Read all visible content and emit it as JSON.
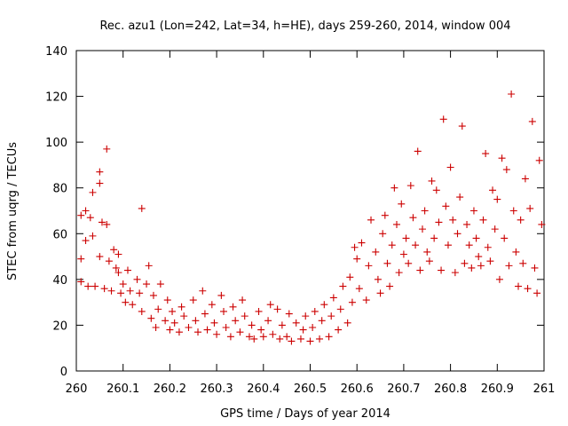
{
  "chart_data": {
    "type": "scatter",
    "title": "Rec. azu1 (Lon=242, Lat=34, h=HE), days 259-260, 2014, window 004",
    "xlabel": "GPS time / Days of year 2014",
    "ylabel": "STEC from uqrg / TECUs",
    "xlim": [
      260,
      261
    ],
    "ylim": [
      0,
      140
    ],
    "grid": false,
    "marker": "+",
    "color": "#cc0000",
    "x_ticks": [
      260,
      260.1,
      260.2,
      260.3,
      260.4,
      260.5,
      260.6,
      260.7,
      260.8,
      260.9,
      261
    ],
    "x_tick_labels": [
      "260",
      "260.1",
      "260.2",
      "260.3",
      "260.4",
      "260.5",
      "260.6",
      "260.7",
      "260.8",
      "260.9",
      "261"
    ],
    "y_ticks": [
      0,
      20,
      40,
      60,
      80,
      100,
      120,
      140
    ],
    "y_tick_labels": [
      "0",
      "20",
      "40",
      "60",
      "80",
      "100",
      "120",
      "140"
    ],
    "series": [
      {
        "name": "STEC",
        "points": [
          [
            260.01,
            68
          ],
          [
            260.01,
            49
          ],
          [
            260.01,
            39
          ],
          [
            260.02,
            70
          ],
          [
            260.02,
            57
          ],
          [
            260.025,
            37
          ],
          [
            260.03,
            67
          ],
          [
            260.035,
            59
          ],
          [
            260.035,
            78
          ],
          [
            260.04,
            37
          ],
          [
            260.05,
            82
          ],
          [
            260.05,
            87
          ],
          [
            260.05,
            50
          ],
          [
            260.055,
            65
          ],
          [
            260.06,
            36
          ],
          [
            260.065,
            97
          ],
          [
            260.065,
            64
          ],
          [
            260.07,
            48
          ],
          [
            260.075,
            35
          ],
          [
            260.08,
            53
          ],
          [
            260.085,
            45
          ],
          [
            260.09,
            43
          ],
          [
            260.09,
            51
          ],
          [
            260.095,
            34
          ],
          [
            260.1,
            38
          ],
          [
            260.105,
            30
          ],
          [
            260.11,
            44
          ],
          [
            260.115,
            35
          ],
          [
            260.12,
            29
          ],
          [
            260.13,
            40
          ],
          [
            260.135,
            34
          ],
          [
            260.14,
            26
          ],
          [
            260.14,
            71
          ],
          [
            260.15,
            38
          ],
          [
            260.155,
            46
          ],
          [
            260.16,
            23
          ],
          [
            260.165,
            33
          ],
          [
            260.17,
            19
          ],
          [
            260.175,
            27
          ],
          [
            260.18,
            38
          ],
          [
            260.19,
            22
          ],
          [
            260.195,
            31
          ],
          [
            260.2,
            18
          ],
          [
            260.205,
            26
          ],
          [
            260.21,
            21
          ],
          [
            260.22,
            17
          ],
          [
            260.225,
            28
          ],
          [
            260.23,
            24
          ],
          [
            260.24,
            19
          ],
          [
            260.25,
            31
          ],
          [
            260.255,
            22
          ],
          [
            260.26,
            17
          ],
          [
            260.27,
            35
          ],
          [
            260.275,
            25
          ],
          [
            260.28,
            18
          ],
          [
            260.29,
            29
          ],
          [
            260.295,
            21
          ],
          [
            260.3,
            16
          ],
          [
            260.31,
            33
          ],
          [
            260.315,
            26
          ],
          [
            260.32,
            19
          ],
          [
            260.33,
            15
          ],
          [
            260.335,
            28
          ],
          [
            260.34,
            22
          ],
          [
            260.35,
            17
          ],
          [
            260.355,
            31
          ],
          [
            260.36,
            24
          ],
          [
            260.37,
            15
          ],
          [
            260.375,
            20
          ],
          [
            260.38,
            14
          ],
          [
            260.39,
            26
          ],
          [
            260.395,
            18
          ],
          [
            260.4,
            15
          ],
          [
            260.41,
            22
          ],
          [
            260.415,
            29
          ],
          [
            260.42,
            16
          ],
          [
            260.43,
            27
          ],
          [
            260.435,
            14
          ],
          [
            260.44,
            20
          ],
          [
            260.45,
            15
          ],
          [
            260.455,
            25
          ],
          [
            260.46,
            13
          ],
          [
            260.47,
            21
          ],
          [
            260.48,
            14
          ],
          [
            260.485,
            18
          ],
          [
            260.49,
            24
          ],
          [
            260.5,
            13
          ],
          [
            260.505,
            19
          ],
          [
            260.51,
            26
          ],
          [
            260.52,
            14
          ],
          [
            260.525,
            22
          ],
          [
            260.53,
            29
          ],
          [
            260.54,
            15
          ],
          [
            260.545,
            24
          ],
          [
            260.55,
            32
          ],
          [
            260.56,
            18
          ],
          [
            260.565,
            27
          ],
          [
            260.57,
            37
          ],
          [
            260.58,
            21
          ],
          [
            260.585,
            41
          ],
          [
            260.59,
            30
          ],
          [
            260.595,
            54
          ],
          [
            260.6,
            49
          ],
          [
            260.605,
            36
          ],
          [
            260.61,
            56
          ],
          [
            260.62,
            31
          ],
          [
            260.625,
            46
          ],
          [
            260.63,
            66
          ],
          [
            260.64,
            52
          ],
          [
            260.645,
            40
          ],
          [
            260.65,
            34
          ],
          [
            260.655,
            60
          ],
          [
            260.66,
            68
          ],
          [
            260.665,
            47
          ],
          [
            260.67,
            37
          ],
          [
            260.675,
            55
          ],
          [
            260.68,
            80
          ],
          [
            260.685,
            64
          ],
          [
            260.69,
            43
          ],
          [
            260.695,
            73
          ],
          [
            260.7,
            51
          ],
          [
            260.705,
            58
          ],
          [
            260.71,
            47
          ],
          [
            260.715,
            81
          ],
          [
            260.72,
            67
          ],
          [
            260.725,
            55
          ],
          [
            260.73,
            96
          ],
          [
            260.735,
            44
          ],
          [
            260.74,
            62
          ],
          [
            260.745,
            70
          ],
          [
            260.75,
            52
          ],
          [
            260.755,
            48
          ],
          [
            260.76,
            83
          ],
          [
            260.765,
            58
          ],
          [
            260.77,
            79
          ],
          [
            260.775,
            65
          ],
          [
            260.78,
            44
          ],
          [
            260.785,
            110
          ],
          [
            260.79,
            72
          ],
          [
            260.795,
            55
          ],
          [
            260.8,
            89
          ],
          [
            260.805,
            66
          ],
          [
            260.81,
            43
          ],
          [
            260.815,
            60
          ],
          [
            260.82,
            76
          ],
          [
            260.825,
            107
          ],
          [
            260.83,
            47
          ],
          [
            260.835,
            64
          ],
          [
            260.84,
            55
          ],
          [
            260.845,
            45
          ],
          [
            260.85,
            70
          ],
          [
            260.855,
            58
          ],
          [
            260.86,
            50
          ],
          [
            260.865,
            46
          ],
          [
            260.87,
            66
          ],
          [
            260.875,
            95
          ],
          [
            260.88,
            54
          ],
          [
            260.885,
            48
          ],
          [
            260.89,
            79
          ],
          [
            260.895,
            62
          ],
          [
            260.9,
            75
          ],
          [
            260.905,
            40
          ],
          [
            260.91,
            93
          ],
          [
            260.915,
            58
          ],
          [
            260.92,
            88
          ],
          [
            260.925,
            46
          ],
          [
            260.93,
            121
          ],
          [
            260.935,
            70
          ],
          [
            260.94,
            52
          ],
          [
            260.945,
            37
          ],
          [
            260.95,
            66
          ],
          [
            260.955,
            47
          ],
          [
            260.96,
            84
          ],
          [
            260.965,
            36
          ],
          [
            260.97,
            71
          ],
          [
            260.975,
            109
          ],
          [
            260.98,
            45
          ],
          [
            260.985,
            34
          ],
          [
            260.99,
            92
          ],
          [
            260.995,
            64
          ]
        ]
      }
    ]
  }
}
